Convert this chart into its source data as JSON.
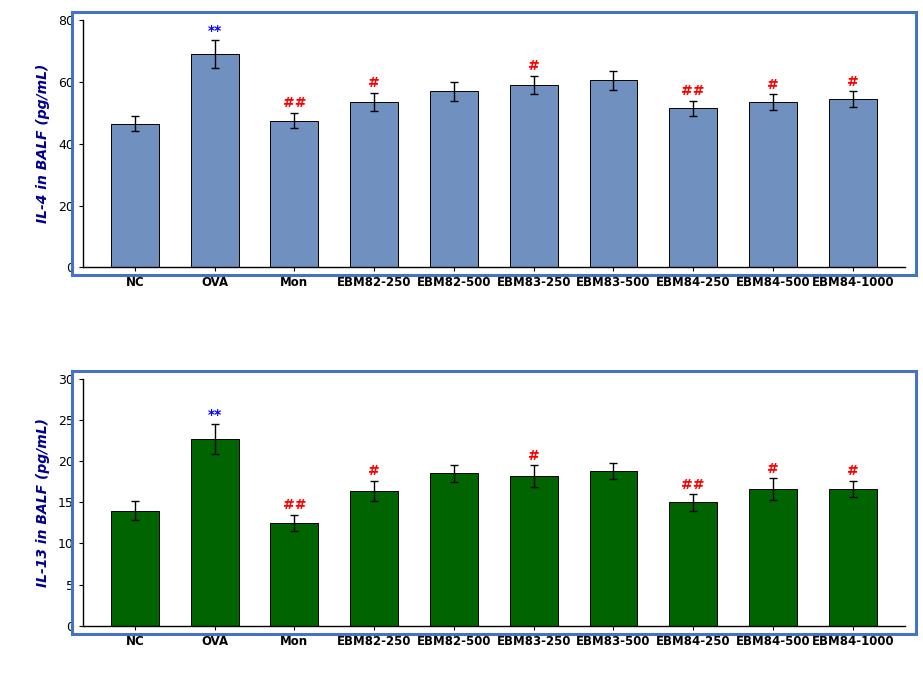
{
  "categories": [
    "NC",
    "OVA",
    "Mon",
    "EBM82-250",
    "EBM82-500",
    "EBM83-250",
    "EBM83-500",
    "EBM84-250",
    "EBM84-500",
    "EBM84-1000"
  ],
  "il4_values": [
    46.5,
    69.0,
    47.5,
    53.5,
    57.0,
    59.0,
    60.5,
    51.5,
    53.5,
    54.5
  ],
  "il4_errors": [
    2.5,
    4.5,
    2.5,
    3.0,
    3.0,
    3.0,
    3.0,
    2.5,
    2.5,
    2.5
  ],
  "il4_ylim": [
    0,
    80
  ],
  "il4_yticks": [
    0,
    20,
    40,
    60,
    80
  ],
  "il4_ylabel": "IL-4 in BALF (pg/mL)",
  "il4_color": "#7090C0",
  "il13_values": [
    14.0,
    22.7,
    12.5,
    16.4,
    18.5,
    18.2,
    18.8,
    15.0,
    16.6,
    16.6
  ],
  "il13_errors": [
    1.2,
    1.8,
    1.0,
    1.2,
    1.0,
    1.3,
    1.0,
    1.0,
    1.3,
    1.0
  ],
  "il13_ylim": [
    0,
    30
  ],
  "il13_yticks": [
    0,
    5,
    10,
    15,
    20,
    25,
    30
  ],
  "il13_ylabel": "IL-13 in BALF (pg/mL)",
  "il13_color": "#006400",
  "annotations_il4": [
    {
      "idx": 1,
      "text": "**",
      "color_chars": [
        "blue",
        "blue"
      ]
    },
    {
      "idx": 2,
      "text": "##",
      "color_chars": [
        "red",
        "red"
      ]
    },
    {
      "idx": 3,
      "text": "#",
      "color_chars": [
        "red"
      ]
    },
    {
      "idx": 5,
      "text": "#",
      "color_chars": [
        "red"
      ]
    },
    {
      "idx": 7,
      "text": "##",
      "color_chars": [
        "red",
        "red"
      ]
    },
    {
      "idx": 8,
      "text": "#",
      "color_chars": [
        "red"
      ]
    },
    {
      "idx": 9,
      "text": "#",
      "color_chars": [
        "red"
      ]
    }
  ],
  "annotations_il13": [
    {
      "idx": 1,
      "text": "**",
      "color_chars": [
        "blue",
        "blue"
      ]
    },
    {
      "idx": 2,
      "text": "##",
      "color_chars": [
        "red",
        "red"
      ]
    },
    {
      "idx": 3,
      "text": "#",
      "color_chars": [
        "red"
      ]
    },
    {
      "idx": 5,
      "text": "#",
      "color_chars": [
        "red"
      ]
    },
    {
      "idx": 7,
      "text": "##",
      "color_chars": [
        "red",
        "red"
      ]
    },
    {
      "idx": 8,
      "text": "#",
      "color_chars": [
        "red"
      ]
    },
    {
      "idx": 9,
      "text": "#",
      "color_chars": [
        "red"
      ]
    }
  ],
  "border_color": "#4472C4",
  "background_color": "#FFFFFF",
  "annotation_fontsize": 10
}
